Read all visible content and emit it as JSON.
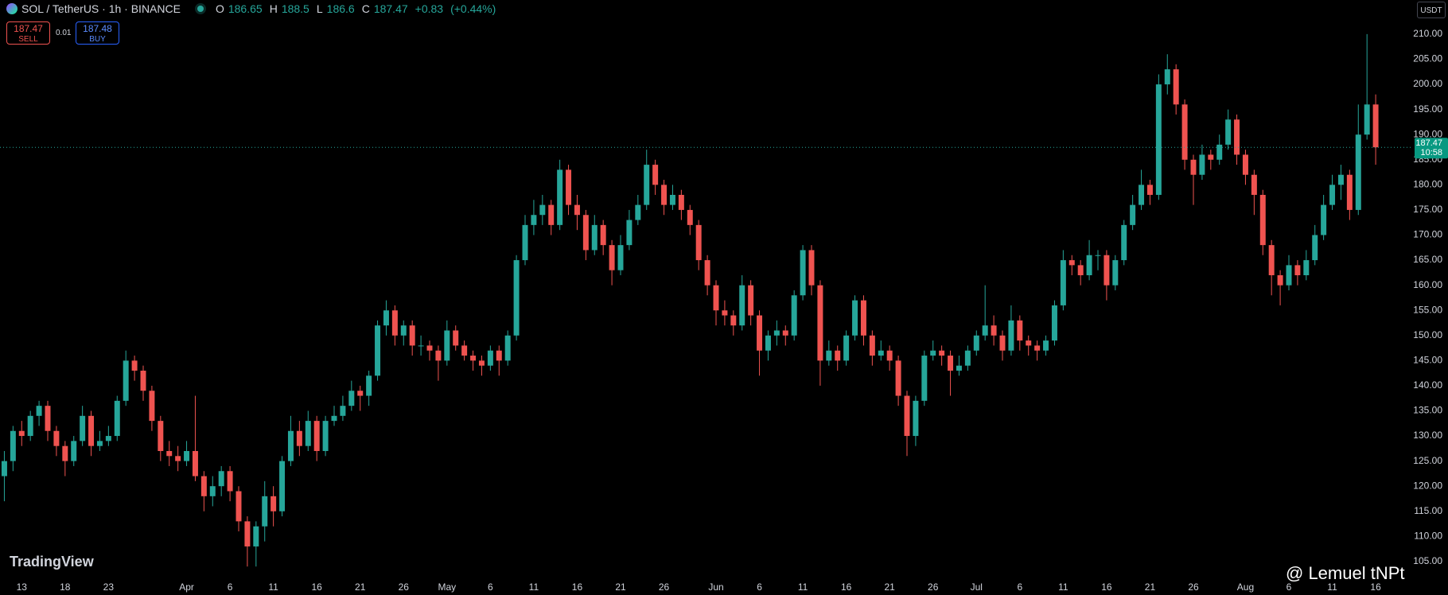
{
  "chart_data": {
    "type": "candlestick",
    "header": {
      "symbol": "SOL / TetherUS · 1h · BINANCE",
      "o_label": "O",
      "open": 186.65,
      "h_label": "H",
      "high": 188.5,
      "l_label": "L",
      "low": 186.6,
      "c_label": "C",
      "close": 187.47,
      "change": "+0.83",
      "change_pct": "(+0.44%)"
    },
    "trade": {
      "sell_price": 187.47,
      "sell_label": "SELL",
      "spread": 0.01,
      "buy_price": 187.48,
      "buy_label": "BUY"
    },
    "currency": "USDT",
    "last_price": 187.47,
    "countdown": "10:58",
    "watermark": "TradingView",
    "signature": "@ Lemuel tNPt",
    "up_color": "#26a69a",
    "down_color": "#ef5350",
    "grid": false,
    "xlim": [
      10.5,
      173.3
    ],
    "ylim": [
      101.5,
      216.8
    ],
    "xticks": [
      13,
      18,
      23,
      {
        "value": 32,
        "label": "Apr"
      },
      {
        "value": 37,
        "label": "6"
      },
      {
        "value": 42,
        "label": "11"
      },
      {
        "value": 47,
        "label": "16"
      },
      {
        "value": 52,
        "label": "21"
      },
      {
        "value": 57,
        "label": "26"
      },
      {
        "value": 62,
        "label": "May"
      },
      {
        "value": 67,
        "label": "6"
      },
      {
        "value": 72,
        "label": "11"
      },
      {
        "value": 77,
        "label": "16"
      },
      {
        "value": 82,
        "label": "21"
      },
      {
        "value": 87,
        "label": "26"
      },
      {
        "value": 93,
        "label": "Jun"
      },
      {
        "value": 98,
        "label": "6"
      },
      {
        "value": 103,
        "label": "11"
      },
      {
        "value": 108,
        "label": "16"
      },
      {
        "value": 113,
        "label": "21"
      },
      {
        "value": 118,
        "label": "26"
      },
      {
        "value": 123,
        "label": "Jul"
      },
      {
        "value": 128,
        "label": "6"
      },
      {
        "value": 133,
        "label": "11"
      },
      {
        "value": 138,
        "label": "16"
      },
      {
        "value": 143,
        "label": "21"
      },
      {
        "value": 148,
        "label": "26"
      },
      {
        "value": 154,
        "label": "Aug"
      },
      {
        "value": 159,
        "label": "6"
      },
      {
        "value": 164,
        "label": "11"
      },
      {
        "value": 169,
        "label": "16"
      }
    ],
    "yticks": [
      {
        "value": 105,
        "label": "105.00"
      },
      {
        "value": 110,
        "label": "110.00"
      },
      {
        "value": 115,
        "label": "115.00"
      },
      {
        "value": 120,
        "label": "120.00"
      },
      {
        "value": 125,
        "label": "125.00"
      },
      {
        "value": 130,
        "label": "130.00"
      },
      {
        "value": 135,
        "label": "135.00"
      },
      {
        "value": 140,
        "label": "140.00"
      },
      {
        "value": 145,
        "label": "145.00"
      },
      {
        "value": 150,
        "label": "150.00"
      },
      {
        "value": 155,
        "label": "155.00"
      },
      {
        "value": 160,
        "label": "160.00"
      },
      {
        "value": 165,
        "label": "165.00"
      },
      {
        "value": 170,
        "label": "170.00"
      },
      {
        "value": 175,
        "label": "175.00"
      },
      {
        "value": 180,
        "label": "180.00"
      },
      {
        "value": 185,
        "label": "185.00"
      },
      {
        "value": 190,
        "label": "190.00"
      },
      {
        "value": 195,
        "label": "195.00"
      },
      {
        "value": 200,
        "label": "200.00"
      },
      {
        "value": 205,
        "label": "205.00"
      },
      {
        "value": 210,
        "label": "210.00"
      }
    ],
    "x": [
      11,
      12,
      13,
      14,
      15,
      16,
      17,
      18,
      19,
      20,
      21,
      22,
      23,
      24,
      25,
      26,
      27,
      28,
      29,
      30,
      31,
      32,
      33,
      34,
      35,
      36,
      37,
      38,
      39,
      40,
      41,
      42,
      43,
      44,
      45,
      46,
      47,
      48,
      49,
      50,
      51,
      52,
      53,
      54,
      55,
      56,
      57,
      58,
      59,
      60,
      61,
      62,
      63,
      64,
      65,
      66,
      67,
      68,
      69,
      70,
      71,
      72,
      73,
      74,
      75,
      76,
      77,
      78,
      79,
      80,
      81,
      82,
      83,
      84,
      85,
      86,
      87,
      88,
      89,
      90,
      91,
      92,
      93,
      94,
      95,
      96,
      97,
      98,
      99,
      100,
      101,
      102,
      103,
      104,
      105,
      106,
      107,
      108,
      109,
      110,
      111,
      112,
      113,
      114,
      115,
      116,
      117,
      118,
      119,
      120,
      121,
      122,
      123,
      124,
      125,
      126,
      127,
      128,
      129,
      130,
      131,
      132,
      133,
      134,
      135,
      136,
      137,
      138,
      139,
      140,
      141,
      142,
      143,
      144,
      145,
      146,
      147,
      148,
      149,
      150,
      151,
      152,
      153,
      154,
      155,
      156,
      157,
      158,
      159,
      160,
      161,
      162,
      163,
      164,
      165,
      166,
      167,
      168,
      169
    ],
    "candles": [
      [
        122,
        127,
        117,
        125
      ],
      [
        125,
        132,
        123,
        131
      ],
      [
        131,
        133,
        128,
        130
      ],
      [
        130,
        135,
        129,
        134
      ],
      [
        134,
        137,
        132,
        136
      ],
      [
        136,
        137,
        129,
        131
      ],
      [
        131,
        132,
        126,
        128
      ],
      [
        128,
        129,
        122,
        125
      ],
      [
        125,
        130,
        124,
        129
      ],
      [
        129,
        136,
        128,
        134
      ],
      [
        134,
        135,
        126,
        128
      ],
      [
        128,
        131,
        127,
        129
      ],
      [
        129,
        132,
        128,
        130
      ],
      [
        130,
        138,
        129,
        137
      ],
      [
        137,
        147,
        136,
        145
      ],
      [
        145,
        146,
        141,
        143
      ],
      [
        143,
        144,
        137,
        139
      ],
      [
        139,
        140,
        131,
        133
      ],
      [
        133,
        134,
        125,
        127
      ],
      [
        127,
        129,
        124,
        126
      ],
      [
        126,
        128,
        123,
        125
      ],
      [
        125,
        129,
        124,
        127
      ],
      [
        127,
        138,
        121,
        122
      ],
      [
        122,
        123,
        115,
        118
      ],
      [
        118,
        122,
        116,
        120
      ],
      [
        120,
        124,
        118,
        123
      ],
      [
        123,
        124,
        117,
        119
      ],
      [
        119,
        120,
        111,
        113
      ],
      [
        113,
        114,
        104,
        108
      ],
      [
        108,
        113,
        104,
        112
      ],
      [
        112,
        121,
        109,
        118
      ],
      [
        118,
        120,
        112,
        115
      ],
      [
        115,
        126,
        114,
        125
      ],
      [
        125,
        134,
        124,
        131
      ],
      [
        131,
        133,
        126,
        128
      ],
      [
        128,
        135,
        127,
        133
      ],
      [
        133,
        134,
        125,
        127
      ],
      [
        127,
        134,
        126,
        133
      ],
      [
        133,
        136,
        132,
        134
      ],
      [
        134,
        138,
        133,
        136
      ],
      [
        136,
        141,
        135,
        139
      ],
      [
        139,
        140,
        135,
        138
      ],
      [
        138,
        143,
        136,
        142
      ],
      [
        142,
        153,
        141,
        152
      ],
      [
        152,
        157,
        150,
        155
      ],
      [
        155,
        156,
        148,
        150
      ],
      [
        150,
        153,
        148,
        152
      ],
      [
        152,
        153,
        146,
        148
      ],
      [
        148,
        150,
        146,
        148
      ],
      [
        148,
        149,
        145,
        147
      ],
      [
        147,
        148,
        141,
        145
      ],
      [
        145,
        153,
        144,
        151
      ],
      [
        151,
        152,
        147,
        148
      ],
      [
        148,
        149,
        145,
        146
      ],
      [
        146,
        147,
        143,
        145
      ],
      [
        145,
        146,
        142,
        144
      ],
      [
        144,
        148,
        143,
        147
      ],
      [
        147,
        148,
        142,
        145
      ],
      [
        145,
        151,
        144,
        150
      ],
      [
        150,
        166,
        149,
        165
      ],
      [
        165,
        174,
        164,
        172
      ],
      [
        172,
        177,
        170,
        174
      ],
      [
        174,
        178,
        172,
        176
      ],
      [
        176,
        177,
        170,
        172
      ],
      [
        172,
        185,
        171,
        183
      ],
      [
        183,
        184,
        174,
        176
      ],
      [
        176,
        178,
        171,
        174
      ],
      [
        174,
        175,
        165,
        167
      ],
      [
        167,
        174,
        166,
        172
      ],
      [
        172,
        173,
        166,
        168
      ],
      [
        168,
        169,
        160,
        163
      ],
      [
        163,
        170,
        162,
        168
      ],
      [
        168,
        175,
        167,
        173
      ],
      [
        173,
        178,
        172,
        176
      ],
      [
        176,
        187,
        175,
        184
      ],
      [
        184,
        185,
        178,
        180
      ],
      [
        180,
        181,
        174,
        176
      ],
      [
        176,
        180,
        175,
        178
      ],
      [
        178,
        179,
        173,
        175
      ],
      [
        175,
        176,
        170,
        172
      ],
      [
        172,
        173,
        163,
        165
      ],
      [
        165,
        166,
        158,
        160
      ],
      [
        160,
        161,
        152,
        155
      ],
      [
        155,
        157,
        152,
        154
      ],
      [
        154,
        155,
        150,
        152
      ],
      [
        152,
        162,
        151,
        160
      ],
      [
        160,
        161,
        152,
        154
      ],
      [
        154,
        155,
        142,
        147
      ],
      [
        147,
        151,
        145,
        150
      ],
      [
        150,
        153,
        148,
        151
      ],
      [
        151,
        152,
        148,
        150
      ],
      [
        150,
        159,
        149,
        158
      ],
      [
        158,
        168,
        157,
        167
      ],
      [
        167,
        168,
        158,
        160
      ],
      [
        160,
        161,
        140,
        145
      ],
      [
        145,
        149,
        144,
        147
      ],
      [
        147,
        148,
        143,
        145
      ],
      [
        145,
        151,
        144,
        150
      ],
      [
        150,
        158,
        149,
        157
      ],
      [
        157,
        158,
        148,
        150
      ],
      [
        150,
        151,
        144,
        146
      ],
      [
        146,
        149,
        145,
        147
      ],
      [
        147,
        148,
        143,
        145
      ],
      [
        145,
        146,
        136,
        138
      ],
      [
        138,
        139,
        126,
        130
      ],
      [
        130,
        138,
        128,
        137
      ],
      [
        137,
        147,
        136,
        146
      ],
      [
        146,
        149,
        145,
        147
      ],
      [
        147,
        148,
        144,
        146
      ],
      [
        146,
        147,
        138,
        143
      ],
      [
        143,
        146,
        142,
        144
      ],
      [
        144,
        148,
        143,
        147
      ],
      [
        147,
        151,
        146,
        150
      ],
      [
        150,
        160,
        149,
        152
      ],
      [
        152,
        154,
        148,
        150
      ],
      [
        150,
        151,
        145,
        147
      ],
      [
        147,
        156,
        146,
        153
      ],
      [
        153,
        154,
        147,
        149
      ],
      [
        149,
        150,
        146,
        148
      ],
      [
        148,
        149,
        145,
        147
      ],
      [
        147,
        150,
        146,
        149
      ],
      [
        149,
        157,
        148,
        156
      ],
      [
        156,
        167,
        155,
        165
      ],
      [
        165,
        166,
        162,
        164
      ],
      [
        164,
        165,
        160,
        162
      ],
      [
        162,
        169,
        161,
        166
      ],
      [
        166,
        167,
        163,
        166
      ],
      [
        166,
        167,
        157,
        160
      ],
      [
        160,
        166,
        159,
        165
      ],
      [
        165,
        173,
        164,
        172
      ],
      [
        172,
        178,
        171,
        176
      ],
      [
        176,
        183,
        175,
        180
      ],
      [
        180,
        181,
        176,
        178
      ],
      [
        178,
        202,
        177,
        200
      ],
      [
        200,
        206,
        198,
        203
      ],
      [
        203,
        204,
        194,
        196
      ],
      [
        196,
        197,
        183,
        185
      ],
      [
        185,
        186,
        176,
        182
      ],
      [
        182,
        188,
        181,
        186
      ],
      [
        186,
        187,
        183,
        185
      ],
      [
        185,
        190,
        184,
        188
      ],
      [
        188,
        195,
        187,
        193
      ],
      [
        193,
        194,
        184,
        186
      ],
      [
        186,
        187,
        180,
        182
      ],
      [
        182,
        183,
        174,
        178
      ],
      [
        178,
        179,
        166,
        168
      ],
      [
        168,
        169,
        158,
        162
      ],
      [
        162,
        163,
        156,
        160
      ],
      [
        160,
        166,
        159,
        164
      ],
      [
        164,
        165,
        160,
        162
      ],
      [
        162,
        167,
        161,
        165
      ],
      [
        165,
        172,
        164,
        170
      ],
      [
        170,
        178,
        169,
        176
      ],
      [
        176,
        182,
        175,
        180
      ],
      [
        180,
        184,
        177,
        182
      ],
      [
        182,
        183,
        173,
        175
      ],
      [
        175,
        196,
        174,
        190
      ],
      [
        190,
        210,
        189,
        196
      ],
      [
        196,
        198,
        184,
        187.47
      ]
    ]
  }
}
